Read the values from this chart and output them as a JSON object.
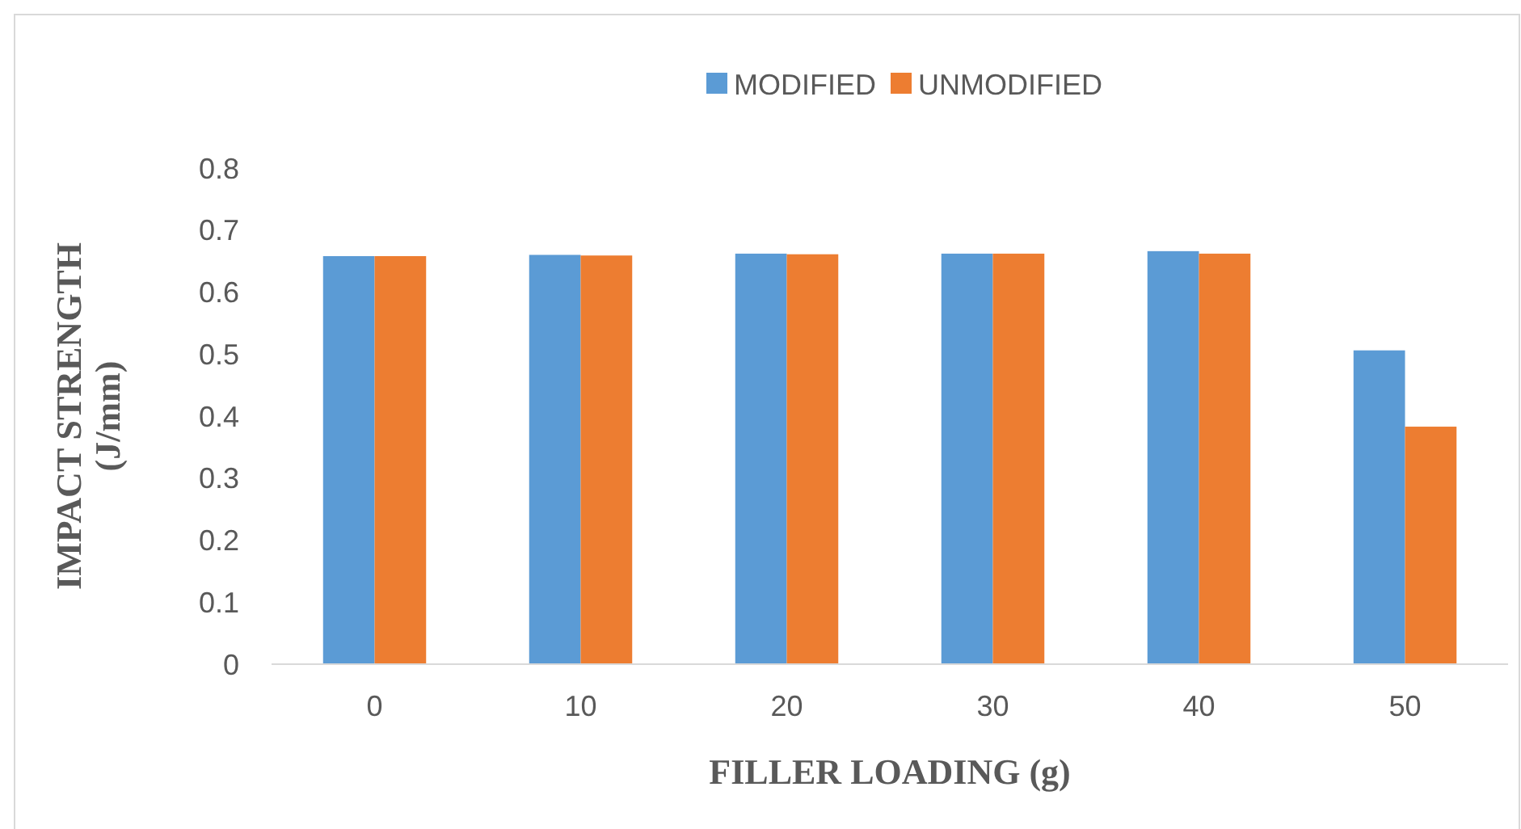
{
  "chart_data": {
    "type": "bar",
    "xlabel": "FILLER LOADING (g)",
    "ylabel": "IMPACT STRENGTH (J/mm)",
    "categories": [
      "0",
      "10",
      "20",
      "30",
      "40",
      "50"
    ],
    "series": [
      {
        "name": "MODIFIED",
        "color": "#5b9bd5",
        "values": [
          0.658,
          0.66,
          0.662,
          0.662,
          0.666,
          0.506
        ]
      },
      {
        "name": "UNMODIFIED",
        "color": "#ed7d31",
        "values": [
          0.658,
          0.659,
          0.661,
          0.662,
          0.662,
          0.383
        ]
      }
    ],
    "ylim": [
      0,
      0.8
    ],
    "yticks": [
      0,
      0.1,
      0.2,
      0.3,
      0.4,
      0.5,
      0.6,
      0.7,
      0.8
    ],
    "grid": false,
    "legend": "top"
  }
}
